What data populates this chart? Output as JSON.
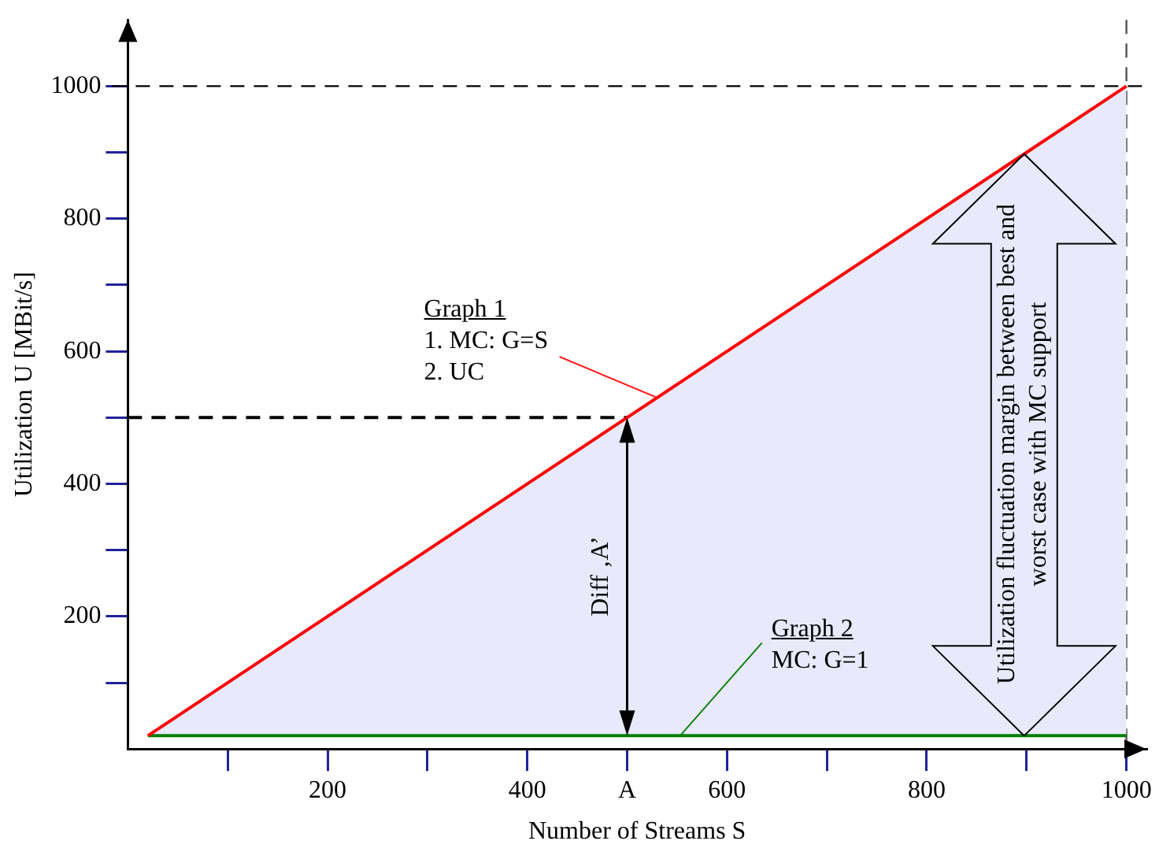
{
  "chart_data": {
    "type": "line",
    "xlabel": "Number of Streams S",
    "ylabel": "Utilization U [MBit/s]",
    "xlim": [
      0,
      1020
    ],
    "ylim": [
      0,
      1100
    ],
    "xticks": [
      {
        "value": 100,
        "label": null
      },
      200,
      {
        "value": 300,
        "label": null
      },
      400,
      {
        "value": 500,
        "label": "A"
      },
      600,
      {
        "value": 700,
        "label": null
      },
      800,
      {
        "value": 900,
        "label": null
      },
      1000
    ],
    "yticks": [
      {
        "value": 100,
        "label": null
      },
      200,
      {
        "value": 300,
        "label": null
      },
      400,
      {
        "value": 500,
        "label": null
      },
      600,
      {
        "value": 700,
        "label": null
      },
      800,
      {
        "value": 900,
        "label": null
      },
      1000
    ],
    "grid": false,
    "legend": false,
    "marker": "none",
    "series": [
      {
        "type": "line",
        "color": "#ff0000",
        "x": [
          20,
          1000
        ],
        "values": [
          20,
          1000
        ],
        "lower": [
          20,
          20
        ],
        "upper": [
          20,
          1000
        ]
      },
      {
        "type": "line",
        "color": "#008000",
        "x": [
          20,
          1000
        ],
        "values": [
          20,
          20
        ]
      },
      {
        "type": "line",
        "color": "#000000",
        "line_style": "dashed",
        "x": [
          0,
          500
        ],
        "values": [
          500,
          500
        ]
      }
    ],
    "ref_lines": [
      {
        "axis": "y",
        "value": 1000,
        "line_style": "dashed",
        "color": "#000000"
      },
      {
        "axis": "x",
        "value": 1000,
        "line_style": "dashed",
        "color": "#555555"
      }
    ],
    "annotations": [
      {
        "text": "Graph 1\n1. MC: G=S\n2. UC",
        "x": 530,
        "y": 530
      },
      {
        "text": "Graph 2\nMC: G=1",
        "x": 553,
        "y": 20
      },
      "Diff ‚A’",
      "Utilization fluctuation margin between best and\nworst case with MC support"
    ]
  }
}
